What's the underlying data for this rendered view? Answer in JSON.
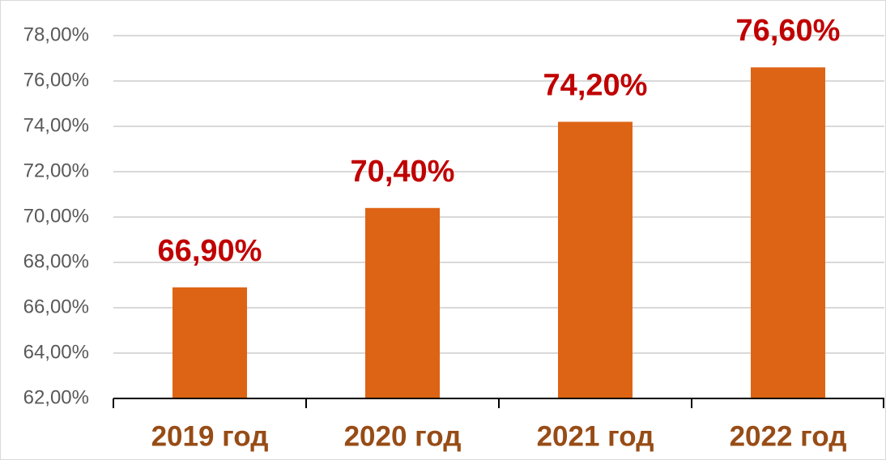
{
  "chart_data": {
    "type": "bar",
    "categories": [
      "2019 год",
      "2020 год",
      "2021 год",
      "2022 год"
    ],
    "values": [
      66.9,
      70.4,
      74.2,
      76.6
    ],
    "value_labels": [
      "66,90%",
      "70,40%",
      "74,20%",
      "76,60%"
    ],
    "color": "#dd6414",
    "ylim": [
      62,
      78
    ],
    "yticks": [
      {
        "value": 62,
        "label": "62,00%"
      },
      {
        "value": 64,
        "label": "64,00%"
      },
      {
        "value": 66,
        "label": "66,00%"
      },
      {
        "value": 68,
        "label": "68,00%"
      },
      {
        "value": 70,
        "label": "70,00%"
      },
      {
        "value": 72,
        "label": "72,00%"
      },
      {
        "value": 74,
        "label": "74,00%"
      },
      {
        "value": 76,
        "label": "76,00%"
      },
      {
        "value": 78,
        "label": "78,00%"
      }
    ],
    "grid": true
  }
}
